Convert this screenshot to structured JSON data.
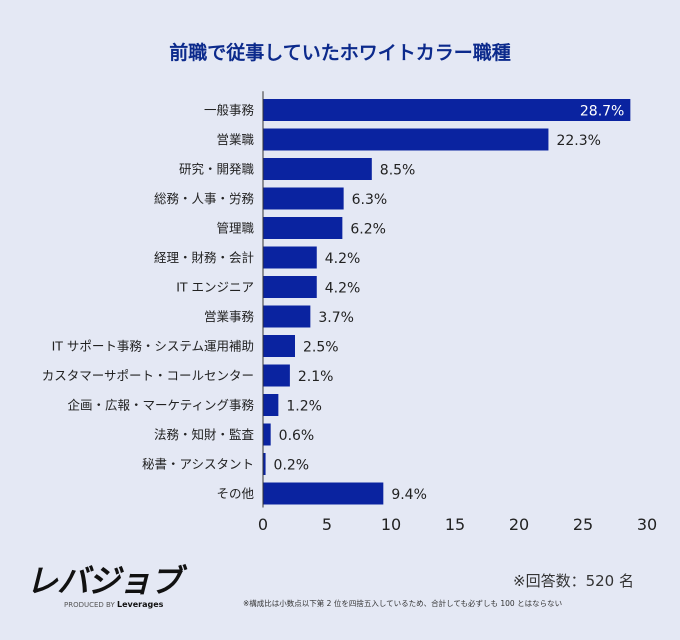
{
  "chart_data": {
    "type": "bar",
    "orientation": "horizontal",
    "title": "前職で従事していたホワイトカラー職種",
    "categories": [
      "一般事務",
      "営業職",
      "研究・開発職",
      "総務・人事・労務",
      "管理職",
      "経理・財務・会計",
      "IT エンジニア",
      "営業事務",
      "IT サポート事務・システム運用補助",
      "カスタマーサポート・コールセンター",
      "企画・広報・マーケティング事務",
      "法務・知財・監査",
      "秘書・アシスタント",
      "その他"
    ],
    "values": [
      28.7,
      22.3,
      8.5,
      6.3,
      6.2,
      4.2,
      4.2,
      3.7,
      2.5,
      2.1,
      1.2,
      0.6,
      0.2,
      9.4
    ],
    "data_labels": [
      "28.7%",
      "22.3%",
      "8.5%",
      "6.3%",
      "6.2%",
      "4.2%",
      "4.2%",
      "3.7%",
      "2.5%",
      "2.1%",
      "1.2%",
      "0.6%",
      "0.2%",
      "9.4%"
    ],
    "xlim": [
      0,
      30
    ],
    "xticks": [
      "0",
      "5",
      "10",
      "15",
      "20",
      "25",
      "30"
    ],
    "grid": false,
    "bar_color": "#0a23a0"
  },
  "footer": {
    "logo": "レバジョブ",
    "produced_by": "PRODUCED BY",
    "company": "Leverages",
    "respondents": "※回答数：520 名",
    "note": "※構成比は小数点以下第 2 位を四捨五入しているため、合計しても必ずしも 100 とはならない"
  }
}
